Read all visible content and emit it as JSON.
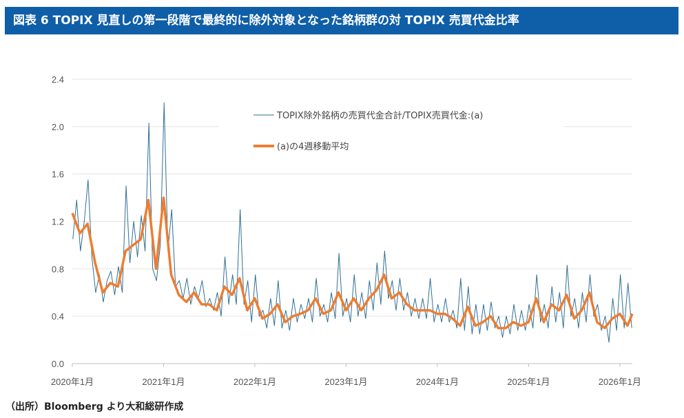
{
  "title": "図表 6 TOPIX 見直しの第一段階で最終的に除外対象となった銘柄群の対 TOPIX 売買代金比率",
  "footer": "（出所）Bloomberg より大和総研作成",
  "chart_data": {
    "type": "line",
    "title": "図表 6 TOPIX 見直しの第一段階で最終的に除外対象となった銘柄群の対 TOPIX 売買代金比率",
    "xlabel": "",
    "ylabel": "",
    "ylim": [
      0,
      2.4
    ],
    "yticks": [
      "0.0",
      "0.4",
      "0.8",
      "1.2",
      "1.6",
      "2.0",
      "2.4"
    ],
    "ytick_values": [
      0,
      0.4,
      0.8,
      1.2,
      1.6,
      2.0,
      2.4
    ],
    "xticks": [
      "2020年1月",
      "2021年1月",
      "2022年1月",
      "2023年1月",
      "2024年1月",
      "2025年1月",
      "2026年1月"
    ],
    "x_start": "2020-01",
    "x_end": "2026-02",
    "grid": true,
    "legend_position": "top-center",
    "series": [
      {
        "name": "TOPIX除外銘柄の売買代金合計/TOPIX売買代金:(a)",
        "color": "#2e6f95",
        "resolution": "semi-monthly",
        "values": [
          1.05,
          1.38,
          0.95,
          1.2,
          1.55,
          0.9,
          0.6,
          0.75,
          0.52,
          0.7,
          0.78,
          0.58,
          0.82,
          0.6,
          1.5,
          0.85,
          1.2,
          0.9,
          1.25,
          0.95,
          2.03,
          0.8,
          0.7,
          1.0,
          2.2,
          0.95,
          1.3,
          0.65,
          0.7,
          0.55,
          0.72,
          0.5,
          0.65,
          0.55,
          0.7,
          0.48,
          0.55,
          0.45,
          0.6,
          0.4,
          0.9,
          0.5,
          0.75,
          0.5,
          1.3,
          0.5,
          0.7,
          0.35,
          0.75,
          0.4,
          0.45,
          0.3,
          0.55,
          0.32,
          0.7,
          0.3,
          0.45,
          0.28,
          0.55,
          0.35,
          0.5,
          0.38,
          0.55,
          0.35,
          0.72,
          0.4,
          0.5,
          0.35,
          0.6,
          0.38,
          0.93,
          0.4,
          0.55,
          0.35,
          0.75,
          0.4,
          0.6,
          0.38,
          0.7,
          0.45,
          0.85,
          0.5,
          0.95,
          0.55,
          0.7,
          0.45,
          0.72,
          0.45,
          0.6,
          0.4,
          0.55,
          0.38,
          0.55,
          0.38,
          0.72,
          0.35,
          0.5,
          0.35,
          0.55,
          0.35,
          0.45,
          0.3,
          0.72,
          0.28,
          0.65,
          0.25,
          0.5,
          0.25,
          0.5,
          0.28,
          0.52,
          0.3,
          0.4,
          0.22,
          0.4,
          0.25,
          0.5,
          0.28,
          0.45,
          0.28,
          0.5,
          0.3,
          0.75,
          0.35,
          0.5,
          0.3,
          0.65,
          0.35,
          0.6,
          0.3,
          0.83,
          0.4,
          0.55,
          0.3,
          0.6,
          0.35,
          0.75,
          0.4,
          0.5,
          0.28,
          0.4,
          0.18,
          0.55,
          0.28,
          0.75,
          0.3,
          0.68,
          0.3
        ]
      },
      {
        "name": "(a)の4週移動平均",
        "color": "#ed7d31",
        "resolution": "monthly",
        "values": [
          1.27,
          1.1,
          1.18,
          0.85,
          0.6,
          0.68,
          0.65,
          0.95,
          1.0,
          1.05,
          1.38,
          0.8,
          1.4,
          0.75,
          0.58,
          0.52,
          0.6,
          0.5,
          0.5,
          0.45,
          0.65,
          0.58,
          0.72,
          0.45,
          0.55,
          0.38,
          0.42,
          0.5,
          0.35,
          0.4,
          0.42,
          0.45,
          0.55,
          0.42,
          0.45,
          0.6,
          0.45,
          0.55,
          0.45,
          0.55,
          0.62,
          0.75,
          0.55,
          0.6,
          0.5,
          0.45,
          0.45,
          0.45,
          0.42,
          0.42,
          0.38,
          0.32,
          0.48,
          0.32,
          0.35,
          0.4,
          0.3,
          0.3,
          0.35,
          0.32,
          0.35,
          0.55,
          0.35,
          0.5,
          0.45,
          0.58,
          0.38,
          0.45,
          0.6,
          0.35,
          0.3,
          0.38,
          0.42,
          0.32,
          0.42
        ]
      }
    ]
  }
}
